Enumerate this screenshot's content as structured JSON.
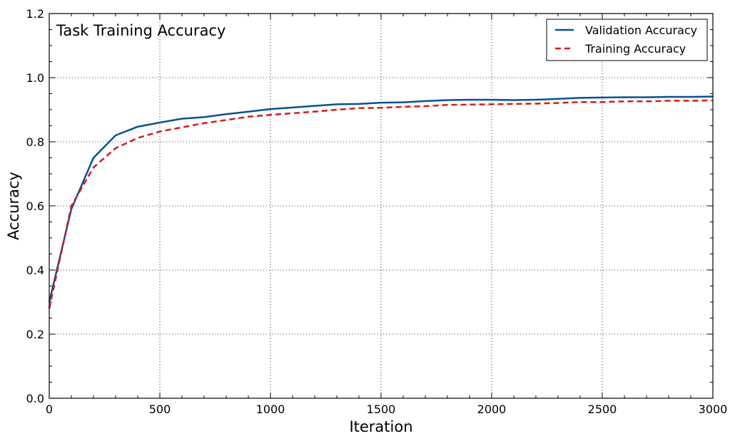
{
  "chart_data": {
    "type": "line",
    "title": "Task Training Accuracy",
    "xlabel": "Iteration",
    "ylabel": "Accuracy",
    "xlim": [
      0,
      3000
    ],
    "ylim": [
      0.0,
      1.2
    ],
    "xticks": [
      0,
      500,
      1000,
      1500,
      2000,
      2500,
      3000
    ],
    "yticks": [
      0.0,
      0.2,
      0.4,
      0.6,
      0.8,
      1.0,
      1.2
    ],
    "xtick_labels": [
      "0",
      "500",
      "1000",
      "1500",
      "2000",
      "2500",
      "3000"
    ],
    "ytick_labels": [
      "0.0",
      "0.2",
      "0.4",
      "0.6",
      "0.8",
      "1.0",
      "1.2"
    ],
    "grid": true,
    "legend_position": "top-right",
    "x": [
      0,
      100,
      200,
      300,
      400,
      500,
      600,
      700,
      800,
      900,
      1000,
      1100,
      1200,
      1300,
      1400,
      1500,
      1600,
      1700,
      1800,
      1900,
      2000,
      2100,
      2200,
      2300,
      2400,
      2500,
      2600,
      2700,
      2800,
      2900,
      3000
    ],
    "series": [
      {
        "name": "Validation Accuracy",
        "color": "#0a5191",
        "style": "solid",
        "values": [
          0.3,
          0.59,
          0.75,
          0.82,
          0.847,
          0.86,
          0.872,
          0.877,
          0.886,
          0.894,
          0.902,
          0.907,
          0.912,
          0.917,
          0.918,
          0.922,
          0.923,
          0.927,
          0.93,
          0.931,
          0.931,
          0.93,
          0.931,
          0.934,
          0.937,
          0.938,
          0.939,
          0.939,
          0.94,
          0.94,
          0.941
        ]
      },
      {
        "name": "Training Accuracy",
        "color": "#d7191c",
        "style": "dashed",
        "values": [
          0.28,
          0.6,
          0.72,
          0.78,
          0.812,
          0.832,
          0.845,
          0.858,
          0.868,
          0.878,
          0.884,
          0.889,
          0.894,
          0.9,
          0.905,
          0.906,
          0.909,
          0.911,
          0.915,
          0.916,
          0.917,
          0.918,
          0.919,
          0.921,
          0.924,
          0.924,
          0.926,
          0.926,
          0.928,
          0.928,
          0.929
        ]
      }
    ]
  }
}
